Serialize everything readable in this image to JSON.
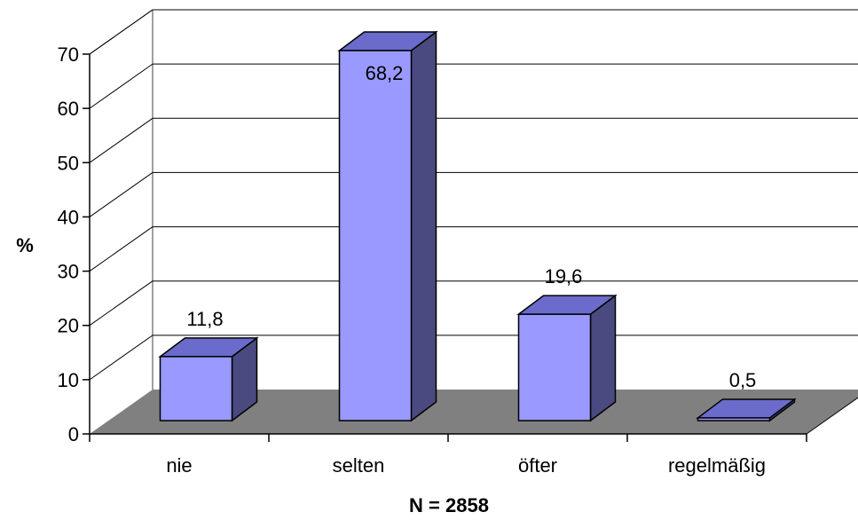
{
  "chart_data": {
    "type": "bar",
    "categories": [
      "nie",
      "selten",
      "öfter",
      "regelmäßig"
    ],
    "values": [
      11.8,
      68.2,
      19.6,
      0.5
    ],
    "data_labels": [
      "11,8",
      "68,2",
      "19,6",
      "0,5"
    ],
    "ylabel": "%",
    "xlabel": "N = 2858",
    "ylim": [
      0,
      70
    ],
    "yticks": [
      "0",
      "10",
      "20",
      "30",
      "40",
      "50",
      "60",
      "70"
    ],
    "grid": true,
    "style": "3d",
    "colors": {
      "bar_front": "#9999ff",
      "bar_side": "#4a4a80",
      "bar_top": "#6b6bcc",
      "floor": "#808080",
      "wall_grid": "#000000"
    }
  }
}
